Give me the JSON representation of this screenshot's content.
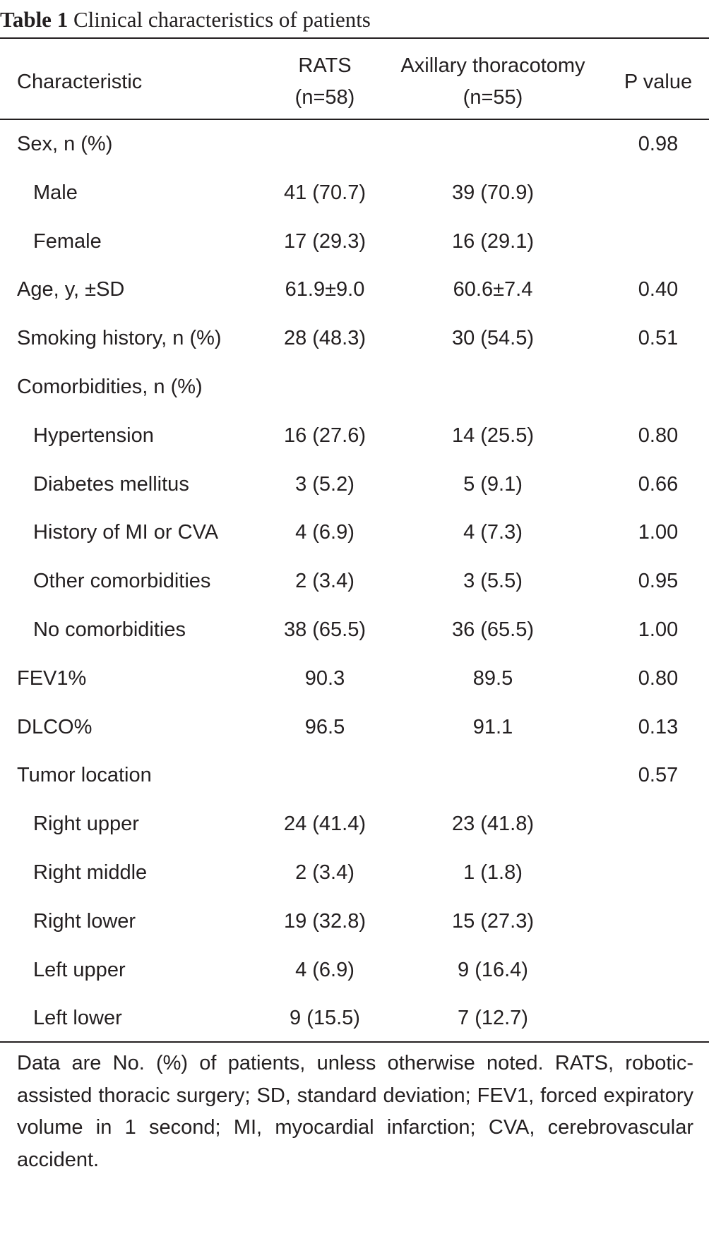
{
  "caption": {
    "label": "Table 1",
    "text": "Clinical characteristics of patients"
  },
  "header": {
    "characteristic": "Characteristic",
    "rats_line1": "RATS",
    "rats_line2": "(n=58)",
    "axillary_line1": "Axillary thoracotomy",
    "axillary_line2": "(n=55)",
    "p_value": "P value"
  },
  "rows": [
    {
      "label": "Sex, n (%)",
      "indent": false,
      "rats": "",
      "axillary": "",
      "p": "0.98"
    },
    {
      "label": "Male",
      "indent": true,
      "rats": "41 (70.7)",
      "axillary": "39 (70.9)",
      "p": ""
    },
    {
      "label": "Female",
      "indent": true,
      "rats": "17 (29.3)",
      "axillary": "16 (29.1)",
      "p": ""
    },
    {
      "label": "Age, y, ±SD",
      "indent": false,
      "rats": "61.9±9.0",
      "axillary": "60.6±7.4",
      "p": "0.40"
    },
    {
      "label": "Smoking history, n (%)",
      "indent": false,
      "rats": "28 (48.3)",
      "axillary": "30 (54.5)",
      "p": "0.51"
    },
    {
      "label": "Comorbidities, n (%)",
      "indent": false,
      "rats": "",
      "axillary": "",
      "p": ""
    },
    {
      "label": "Hypertension",
      "indent": true,
      "rats": "16 (27.6)",
      "axillary": "14 (25.5)",
      "p": "0.80"
    },
    {
      "label": "Diabetes mellitus",
      "indent": true,
      "rats": "3 (5.2)",
      "axillary": "5 (9.1)",
      "p": "0.66"
    },
    {
      "label": "History of MI or CVA",
      "indent": true,
      "rats": "4 (6.9)",
      "axillary": "4 (7.3)",
      "p": "1.00"
    },
    {
      "label": "Other comorbidities",
      "indent": true,
      "rats": "2 (3.4)",
      "axillary": "3 (5.5)",
      "p": "0.95"
    },
    {
      "label": "No comorbidities",
      "indent": true,
      "rats": "38 (65.5)",
      "axillary": "36 (65.5)",
      "p": "1.00"
    },
    {
      "label": "FEV1%",
      "indent": false,
      "rats": "90.3",
      "axillary": "89.5",
      "p": "0.80"
    },
    {
      "label": "DLCO%",
      "indent": false,
      "rats": "96.5",
      "axillary": "91.1",
      "p": "0.13"
    },
    {
      "label": "Tumor location",
      "indent": false,
      "rats": "",
      "axillary": "",
      "p": "0.57"
    },
    {
      "label": "Right upper",
      "indent": true,
      "rats": "24 (41.4)",
      "axillary": "23 (41.8)",
      "p": ""
    },
    {
      "label": "Right middle",
      "indent": true,
      "rats": "2 (3.4)",
      "axillary": "1 (1.8)",
      "p": ""
    },
    {
      "label": "Right lower",
      "indent": true,
      "rats": "19 (32.8)",
      "axillary": "15 (27.3)",
      "p": ""
    },
    {
      "label": "Left upper",
      "indent": true,
      "rats": "4 (6.9)",
      "axillary": "9 (16.4)",
      "p": ""
    },
    {
      "label": "Left lower",
      "indent": true,
      "rats": "9 (15.5)",
      "axillary": "7 (12.7)",
      "p": ""
    }
  ],
  "footnote": "Data are No. (%) of patients, unless otherwise noted. RATS, robotic-assisted thoracic surgery; SD, standard deviation; FEV1, forced expiratory volume in 1 second; MI, myocardial infarction; CVA, cerebrovascular accident."
}
